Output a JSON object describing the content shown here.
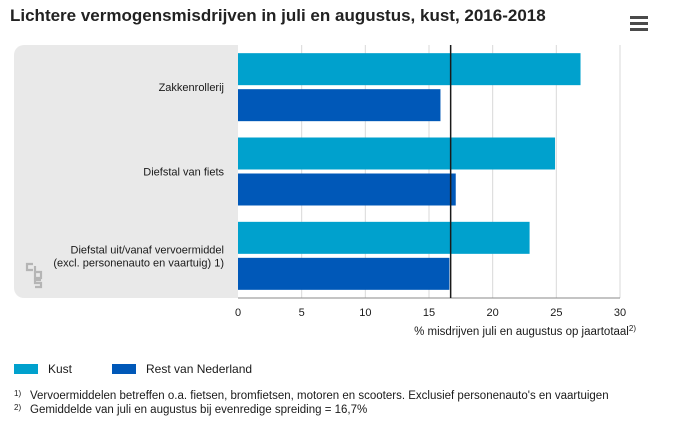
{
  "title": "Lichtere vermogensmisdrijven in juli en augustus, kust, 2016-2018",
  "menu_icon": "hamburger-menu-icon",
  "logo_icon": "cbs-logo-icon",
  "colors": {
    "kust": "#00a1cd",
    "rest": "#0058b8",
    "panel": "#e9e9e9",
    "reference": "#1a1a1a"
  },
  "legend": [
    {
      "label": "Kust",
      "color": "#00a1cd"
    },
    {
      "label": "Rest van Nederland",
      "color": "#0058b8"
    }
  ],
  "footnotes": [
    {
      "mark": "1)",
      "text": "Vervoermiddelen betreffen o.a. fietsen, bromfietsen, motoren en scooters. Exclusief personenauto's en vaartuigen"
    },
    {
      "mark": "2)",
      "text": "Gemiddelde van juli en augustus bij evenredige spreiding = 16,7%"
    }
  ],
  "chart_data": {
    "type": "bar",
    "orientation": "horizontal",
    "title": "Lichtere vermogensmisdrijven in juli en augustus, kust, 2016-2018",
    "categories": [
      [
        "Zakkenrollerij"
      ],
      [
        "Diefstal van fiets"
      ],
      [
        "Diefstal uit/vanaf vervoermiddel",
        "(excl. personenauto en vaartuig) 1)"
      ]
    ],
    "series": [
      {
        "name": "Kust",
        "values": [
          26.9,
          24.9,
          22.9
        ]
      },
      {
        "name": "Rest van Nederland",
        "values": [
          15.9,
          17.1,
          16.6
        ]
      }
    ],
    "xlabel": "% misdrijven juli en augustus op jaartotaal",
    "xlabel_sup": "2)",
    "xlim": [
      0,
      30
    ],
    "xticks": [
      "0",
      "5",
      "10",
      "15",
      "20",
      "25",
      "30"
    ],
    "reference_line": 16.7,
    "grid": true,
    "legend_position": "bottom-left"
  }
}
